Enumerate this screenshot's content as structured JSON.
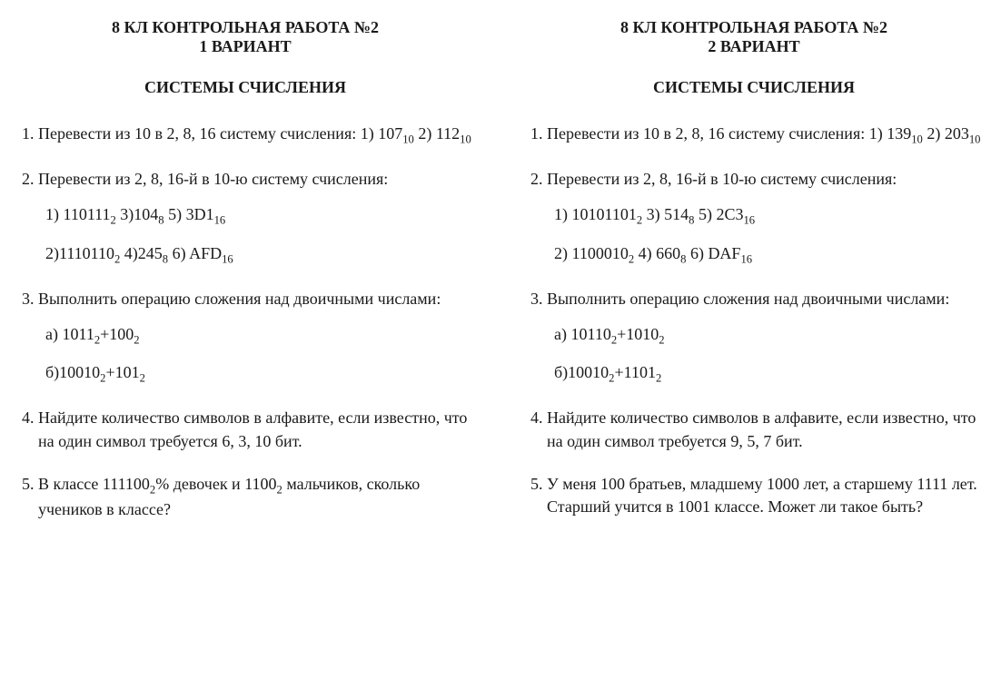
{
  "page": {
    "background_color": "#ffffff",
    "text_color": "#1a1a1a",
    "font_family": "Times New Roman",
    "base_font_size_pt": 14,
    "layout": "two-column-worksheet"
  },
  "variants": [
    {
      "header_line1": "8 КЛ КОНТРОЛЬНАЯ РАБОТА №2",
      "header_line2": "1 ВАРИАНТ",
      "subtitle": "СИСТЕМЫ СЧИСЛЕНИЯ",
      "tasks": [
        {
          "text_before": "Перевести из 10 в 2, 8, 16 систему счисления: 1) ",
          "items_line": [
            {
              "value": "107",
              "sub": "10"
            },
            {
              "plain": "   2) "
            },
            {
              "value": "112",
              "sub": "10"
            }
          ]
        },
        {
          "text_before": "Перевести из 2, 8, 16-й  в 10-ю систему счисления:",
          "rows": [
            [
              {
                "plain": "1) "
              },
              {
                "value": "110111",
                "sub": "2"
              },
              {
                "plain": "    3)"
              },
              {
                "value": "104",
                "sub": "8"
              },
              {
                "plain": "   5) "
              },
              {
                "value": "3D1",
                "sub": "16"
              }
            ],
            [
              {
                "plain": "2)"
              },
              {
                "value": "1110110",
                "sub": "2"
              },
              {
                "plain": "   4)"
              },
              {
                "value": "245",
                "sub": "8"
              },
              {
                "plain": "   6) "
              },
              {
                "value": "AFD",
                "sub": "16"
              }
            ]
          ]
        },
        {
          "text_before": "Выполнить операцию сложения над  двоичными числами:",
          "rows": [
            [
              {
                "plain": "а) "
              },
              {
                "value": "1011",
                "sub": "2"
              },
              {
                "plain": "+"
              },
              {
                "value": "100",
                "sub": "2"
              }
            ],
            [
              {
                "plain": "б)"
              },
              {
                "value": "10010",
                "sub": "2"
              },
              {
                "plain": "+"
              },
              {
                "value": "101",
                "sub": "2"
              }
            ]
          ]
        },
        {
          "text_before": "Найдите количество символов в алфавите, если известно, что на один символ требуется 6,  3, 10 бит."
        },
        {
          "text_before_parts": [
            {
              "plain": "В классе "
            },
            {
              "value": "111100",
              "sub": "2"
            },
            {
              "plain": "%  девочек и "
            },
            {
              "value": "1100",
              "sub": "2"
            },
            {
              "plain": " мальчиков, сколько учеников в классе?"
            }
          ]
        }
      ]
    },
    {
      "header_line1": "8 КЛ КОНТРОЛЬНАЯ РАБОТА №2",
      "header_line2": "2 ВАРИАНТ",
      "subtitle": "СИСТЕМЫ СЧИСЛЕНИЯ",
      "tasks": [
        {
          "text_before": "Перевести из 10 в 2, 8, 16 систему счисления: 1) ",
          "items_line": [
            {
              "value": "139",
              "sub": "10"
            },
            {
              "plain": "   2) "
            },
            {
              "value": "203",
              "sub": "10"
            }
          ]
        },
        {
          "text_before": "Перевести из 2, 8, 16-й  в 10-ю систему счисления:",
          "rows": [
            [
              {
                "plain": "1) "
              },
              {
                "value": "10101101",
                "sub": "2"
              },
              {
                "plain": "    3) "
              },
              {
                "value": "514",
                "sub": "8"
              },
              {
                "plain": "   5) "
              },
              {
                "value": "2C3",
                "sub": "16"
              }
            ],
            [
              {
                "plain": "2) "
              },
              {
                "value": "1100010",
                "sub": "2"
              },
              {
                "plain": "     4) "
              },
              {
                "value": "660",
                "sub": "8"
              },
              {
                "plain": "   6) "
              },
              {
                "value": "DAF",
                "sub": "16"
              }
            ]
          ]
        },
        {
          "text_before": "Выполнить операцию сложения над  двоичными числами:",
          "rows": [
            [
              {
                "plain": "а) "
              },
              {
                "value": "10110",
                "sub": "2"
              },
              {
                "plain": "+"
              },
              {
                "value": "1010",
                "sub": "2"
              }
            ],
            [
              {
                "plain": "б)"
              },
              {
                "value": "10010",
                "sub": "2"
              },
              {
                "plain": "+"
              },
              {
                "value": "1101",
                "sub": "2"
              }
            ]
          ]
        },
        {
          "text_before": "Найдите количество символов в алфавите, если известно, что на один символ требуется 9, 5, 7 бит."
        },
        {
          "text_before": "У меня 100 братьев, младшему 1000 лет, а старшему 1111 лет. Старший учится в 1001 классе. Может ли такое быть?"
        }
      ]
    }
  ]
}
